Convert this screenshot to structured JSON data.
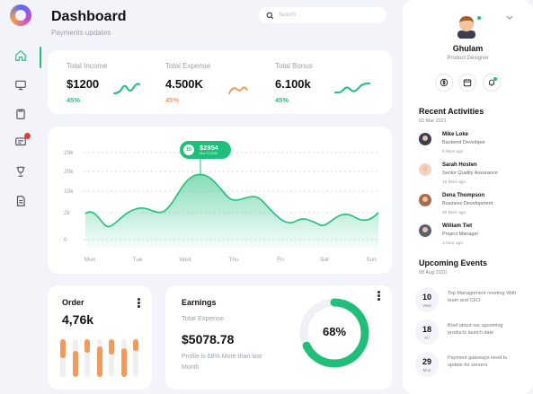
{
  "header": {
    "title": "Dashboard",
    "subtitle": "Payments updates",
    "search_placeholder": "Search"
  },
  "sidebar": {
    "items": [
      {
        "icon": "home-icon",
        "active": true
      },
      {
        "icon": "monitor-icon",
        "active": false
      },
      {
        "icon": "clipboard-icon",
        "active": false
      },
      {
        "icon": "message-icon",
        "active": false,
        "badge": true
      },
      {
        "icon": "trophy-icon",
        "active": false
      },
      {
        "icon": "document-icon",
        "active": false
      }
    ]
  },
  "stats": [
    {
      "label": "Total Income",
      "value": "$1200",
      "percent": "45%",
      "color": "#1fbf7a"
    },
    {
      "label": "Total Expense",
      "value": "4.500K",
      "percent": "45%",
      "color": "#f39a5a"
    },
    {
      "label": "Total Bonus",
      "value": "6.100k",
      "percent": "45%",
      "color": "#1fbf7a"
    }
  ],
  "chart_data": {
    "type": "area",
    "categories": [
      "Mon",
      "Tue",
      "Wed",
      "Thu",
      "Fri",
      "Sat",
      "Sun"
    ],
    "y_ticks": [
      "29k",
      "20k",
      "10k",
      "2k",
      "0"
    ],
    "tooltip": {
      "badge": "15",
      "value": "$2954",
      "date": "Nov 21 2020"
    },
    "color": "#1fbf7a"
  },
  "order": {
    "title": "Order",
    "value": "4,76k",
    "bars": [
      0.5,
      0.7,
      0.35,
      0.8,
      0.4,
      0.75,
      0.3
    ]
  },
  "earnings": {
    "title": "Earnings",
    "label": "Total Expense",
    "value": "$5078.78",
    "note": "Profile is 68% More than last Month",
    "percent_label": "68%",
    "percent": 68
  },
  "profile": {
    "name": "Ghulam",
    "role": "Product Designer"
  },
  "activities": {
    "title": "Recent Activities",
    "date": "02 Mar 2021",
    "items": [
      {
        "name": "Mike Loke",
        "role": "Backend Developer",
        "time": "5 Mins ago"
      },
      {
        "name": "Sarah Hosten",
        "role": "Senior Quality Assurance",
        "time": "15 Mins ago"
      },
      {
        "name": "Dena Thompson",
        "role": "Business Development",
        "time": "30 Mins ago"
      },
      {
        "name": "William Tiet",
        "role": "Project Manager",
        "time": "1 hour ago"
      }
    ]
  },
  "events": {
    "title": "Upcoming Events",
    "date": "08 Aug 2020",
    "items": [
      {
        "day": "10",
        "dow": "Wed",
        "text": "Top Management meeting With team and CEO"
      },
      {
        "day": "18",
        "dow": "Fri",
        "text": "Brief about our upcoming products launch date"
      },
      {
        "day": "29",
        "dow": "Mon",
        "text": "Payment gateways need to update for servers"
      }
    ]
  }
}
